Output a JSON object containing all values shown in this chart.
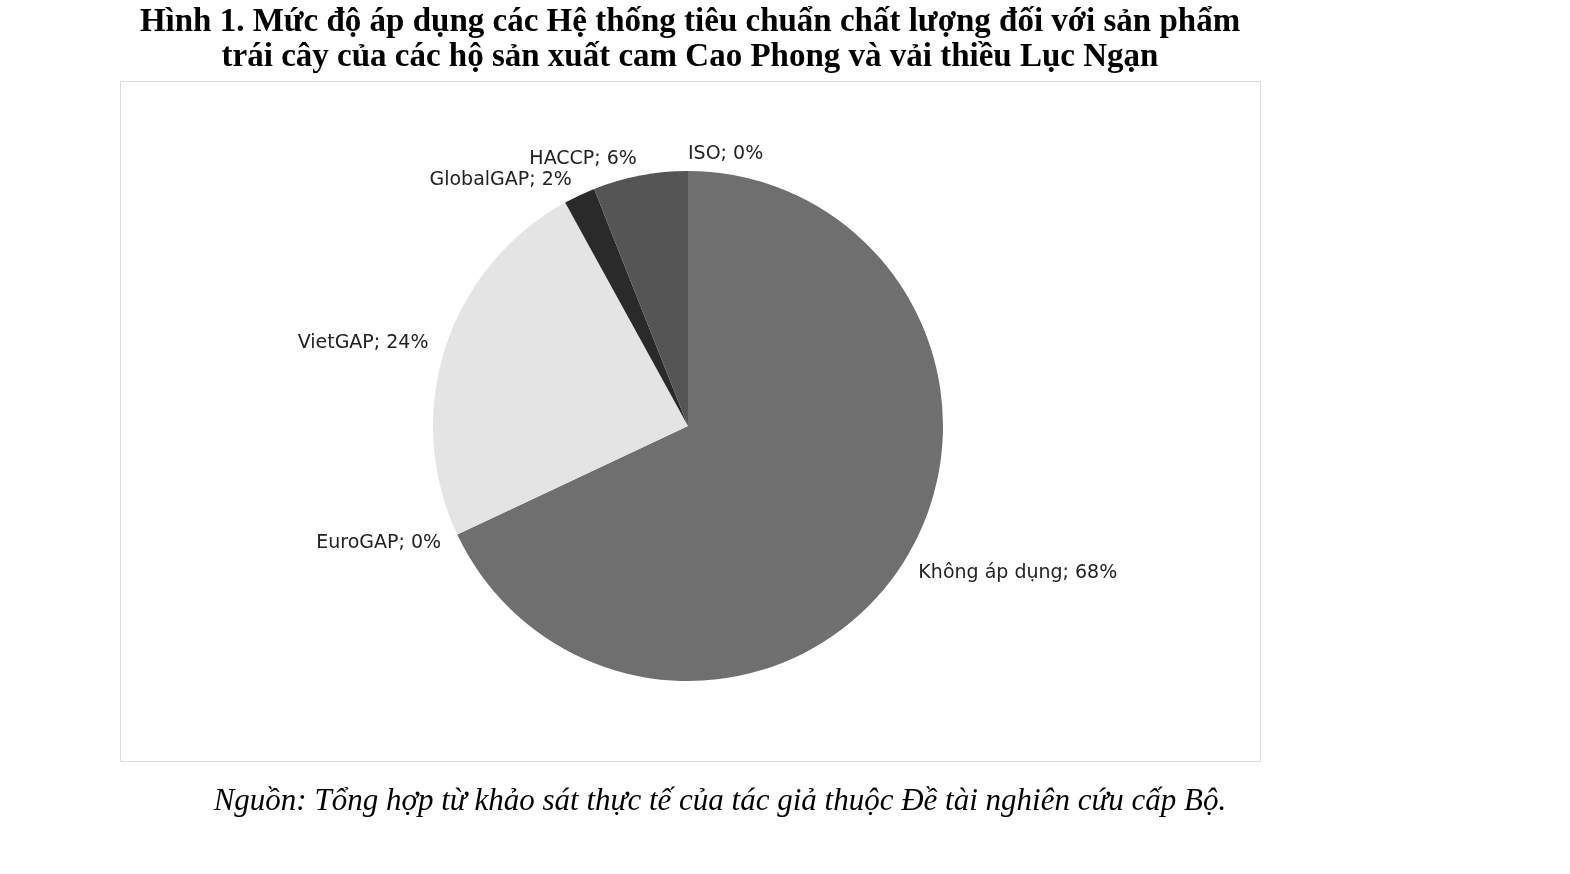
{
  "chart_data": {
    "type": "pie",
    "title": [
      "Hình 1. Mức độ áp dụng các Hệ thống tiêu chuẩn chất lượng đối với sản phẩm",
      "trái cây của các hộ sản xuất cam Cao Phong và vải thiều Lục Ngạn"
    ],
    "categories": [
      "Không áp dụng",
      "EuroGAP",
      "VietGAP",
      "GlobalGAP",
      "HACCP",
      "ISO"
    ],
    "values": [
      68,
      0,
      24,
      2,
      6,
      0
    ],
    "colors": [
      "#6f6f6f",
      "#9a9a9a",
      "#e4e4e4",
      "#2a2a2a",
      "#555555",
      "#9a9a9a"
    ],
    "value_labels": [
      "; 68%",
      "; 0%",
      "; 24%",
      "; 2%",
      "; 6%",
      "; 0%"
    ],
    "legend": false,
    "annotations": [
      "Nguồn: Tổng hợp từ khảo sát thực tế của tác giả thuộc Đề tài nghiên cứu cấp Bộ."
    ]
  }
}
